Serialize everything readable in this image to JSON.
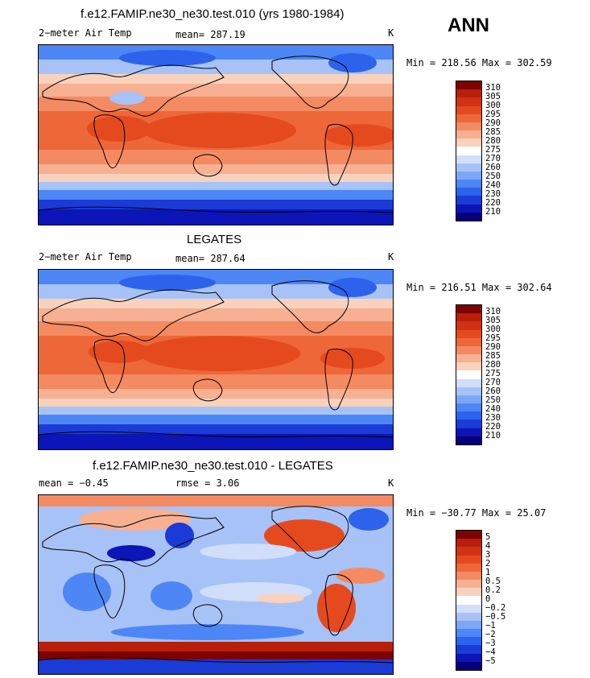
{
  "season": "ANN",
  "colors": {
    "abs_scale": [
      "#08007a",
      "#0b15b8",
      "#1a3bd6",
      "#2c62ec",
      "#4d86f5",
      "#7ea6f7",
      "#a7c2f7",
      "#d0def9",
      "#ffffff",
      "#f8d2bc",
      "#f7b092",
      "#f38a62",
      "#ee6738",
      "#e54a1f",
      "#d03213",
      "#b81f0a",
      "#7f0000"
    ],
    "diff_scale": [
      "#08007a",
      "#0b15b8",
      "#1a3bd6",
      "#2c62ec",
      "#4d86f5",
      "#7ea6f7",
      "#a7c2f7",
      "#d0def9",
      "#ffffff",
      "#f8d2bc",
      "#f7b092",
      "#f38a62",
      "#ee6738",
      "#e54a1f",
      "#d03213",
      "#b81f0a",
      "#7f0000"
    ]
  },
  "panels": [
    {
      "title": "f.e12.FAMIP.ne30_ne30.test.010 (yrs 1980-1984)",
      "left_label": "2−meter Air Temp",
      "center_label": "mean=  287.19",
      "units": "K",
      "minmax": "Min = 218.56 Max = 302.59",
      "levels": [
        "310",
        "305",
        "300",
        "295",
        "290",
        "285",
        "280",
        "275",
        "270",
        "260",
        "250",
        "240",
        "230",
        "220",
        "210"
      ]
    },
    {
      "title": "LEGATES",
      "left_label": "2−meter Air Temp",
      "center_label": "mean=  287.64",
      "units": "K",
      "minmax": "Min = 216.51 Max = 302.64",
      "levels": [
        "310",
        "305",
        "300",
        "295",
        "290",
        "285",
        "280",
        "275",
        "270",
        "260",
        "250",
        "240",
        "230",
        "220",
        "210"
      ]
    },
    {
      "title": "f.e12.FAMIP.ne30_ne30.test.010 - LEGATES",
      "left_label": "mean =   −0.45",
      "center_label": "rmse =    3.06",
      "units": "K",
      "minmax": "Min = −30.77 Max =  25.07",
      "levels": [
        "5",
        "4",
        "3",
        "2",
        "1",
        "0.5",
        "0.2",
        "0",
        "−0.2",
        "−0.5",
        "−1",
        "−2",
        "−3",
        "−4",
        "−5"
      ]
    }
  ]
}
